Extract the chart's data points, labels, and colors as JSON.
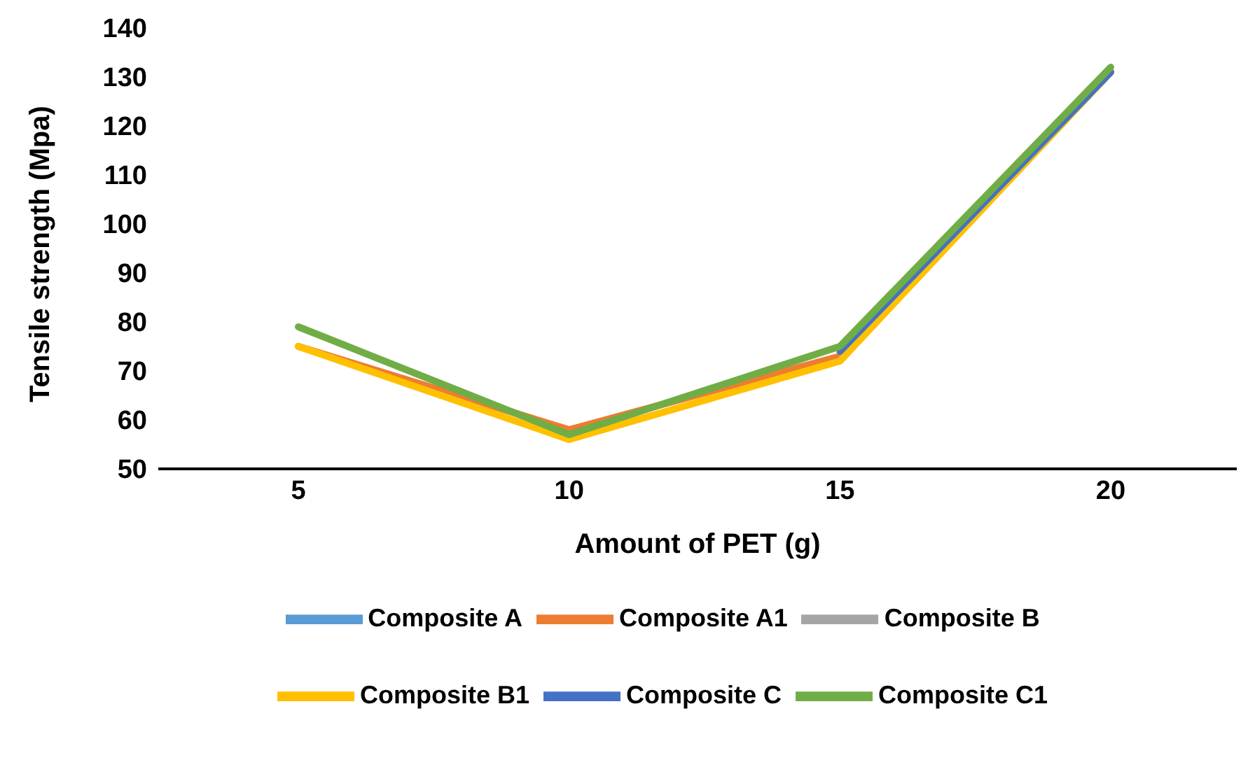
{
  "chart_data": {
    "type": "line",
    "xlabel": "Amount of PET (g)",
    "ylabel": "Tensile strength  (Mpa)",
    "categories": [
      "5",
      "10",
      "15",
      "20"
    ],
    "ylim": [
      50,
      140
    ],
    "yticks": [
      50,
      60,
      70,
      80,
      90,
      100,
      110,
      120,
      130,
      140
    ],
    "grid": false,
    "legend": "bottom",
    "marker": "none",
    "line_style": "solid",
    "series": [
      {
        "name": "Composite A",
        "color": "#5b9bd5",
        "values": [
          null,
          null,
          null,
          null
        ]
      },
      {
        "name": "Composite A1",
        "color": "#ed7d31",
        "values": [
          75,
          58,
          73,
          131
        ]
      },
      {
        "name": "Composite B",
        "color": "#a5a5a5",
        "values": [
          null,
          null,
          null,
          null
        ]
      },
      {
        "name": "Composite B1",
        "color": "#ffc000",
        "values": [
          75,
          56,
          72,
          131
        ]
      },
      {
        "name": "Composite C",
        "color": "#4472c4",
        "values": [
          null,
          null,
          74,
          131
        ]
      },
      {
        "name": "Composite C1",
        "color": "#70ad47",
        "values": [
          79,
          57,
          75,
          132
        ]
      }
    ]
  }
}
